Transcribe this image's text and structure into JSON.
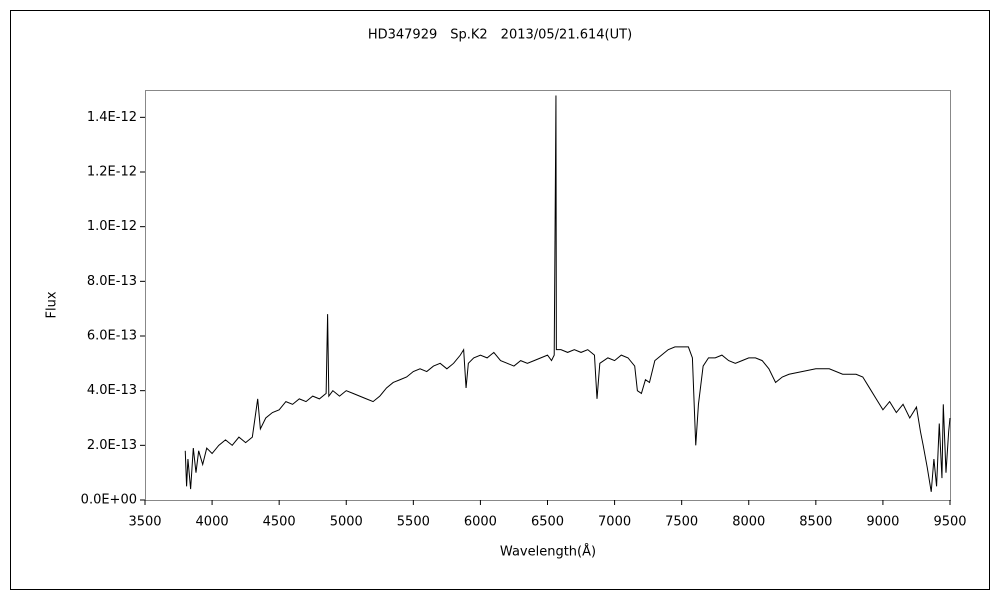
{
  "chart_data": {
    "type": "line",
    "title": "HD347929　Sp.K2　2013/05/21.614(UT)",
    "x_label": "Wavelength(Å)",
    "y_label": "Flux",
    "color": "#000000",
    "x": [
      3800,
      3810,
      3820,
      3840,
      3860,
      3880,
      3900,
      3930,
      3960,
      4000,
      4050,
      4100,
      4150,
      4200,
      4250,
      4300,
      4340,
      4360,
      4400,
      4450,
      4500,
      4550,
      4600,
      4650,
      4700,
      4750,
      4800,
      4850,
      4861,
      4870,
      4900,
      4950,
      5000,
      5050,
      5100,
      5150,
      5200,
      5250,
      5300,
      5350,
      5400,
      5450,
      5500,
      5550,
      5600,
      5650,
      5700,
      5750,
      5800,
      5850,
      5875,
      5893,
      5910,
      5950,
      6000,
      6050,
      6100,
      6150,
      6200,
      6250,
      6300,
      6350,
      6400,
      6450,
      6500,
      6530,
      6550,
      6560,
      6563,
      6566,
      6600,
      6650,
      6700,
      6750,
      6800,
      6850,
      6869,
      6890,
      6950,
      7000,
      7050,
      7100,
      7150,
      7170,
      7200,
      7230,
      7260,
      7300,
      7350,
      7400,
      7450,
      7500,
      7550,
      7580,
      7605,
      7625,
      7660,
      7700,
      7750,
      7800,
      7850,
      7900,
      7950,
      8000,
      8050,
      8100,
      8150,
      8200,
      8250,
      8300,
      8400,
      8500,
      8600,
      8700,
      8800,
      8850,
      8900,
      8950,
      9000,
      9050,
      9100,
      9150,
      9200,
      9250,
      9280,
      9300,
      9330,
      9360,
      9380,
      9400,
      9420,
      9440,
      9450,
      9470,
      9490,
      9500
    ],
    "values": [
      1.8e-13,
      5e-14,
      1.5e-13,
      4e-14,
      1.9e-13,
      1e-13,
      1.8e-13,
      1.3e-13,
      1.9e-13,
      1.7e-13,
      2e-13,
      2.2e-13,
      2e-13,
      2.3e-13,
      2.1e-13,
      2.3e-13,
      3.7e-13,
      2.6e-13,
      3e-13,
      3.2e-13,
      3.3e-13,
      3.6e-13,
      3.5e-13,
      3.7e-13,
      3.6e-13,
      3.8e-13,
      3.7e-13,
      3.9e-13,
      6.8e-13,
      3.8e-13,
      4e-13,
      3.8e-13,
      4e-13,
      3.9e-13,
      3.8e-13,
      3.7e-13,
      3.6e-13,
      3.8e-13,
      4.1e-13,
      4.3e-13,
      4.4e-13,
      4.5e-13,
      4.7e-13,
      4.8e-13,
      4.7e-13,
      4.9e-13,
      5e-13,
      4.8e-13,
      5e-13,
      5.3e-13,
      5.5e-13,
      4.1e-13,
      5e-13,
      5.2e-13,
      5.3e-13,
      5.2e-13,
      5.4e-13,
      5.1e-13,
      5e-13,
      4.9e-13,
      5.1e-13,
      5e-13,
      5.1e-13,
      5.2e-13,
      5.3e-13,
      5.1e-13,
      5.3e-13,
      1.25e-12,
      1.48e-12,
      5.5e-13,
      5.5e-13,
      5.4e-13,
      5.5e-13,
      5.4e-13,
      5.5e-13,
      5.3e-13,
      3.7e-13,
      5e-13,
      5.2e-13,
      5.1e-13,
      5.3e-13,
      5.2e-13,
      4.9e-13,
      4e-13,
      3.9e-13,
      4.4e-13,
      4.3e-13,
      5.1e-13,
      5.3e-13,
      5.5e-13,
      5.6e-13,
      5.6e-13,
      5.6e-13,
      5.2e-13,
      2e-13,
      3.5e-13,
      4.9e-13,
      5.2e-13,
      5.2e-13,
      5.3e-13,
      5.1e-13,
      5e-13,
      5.1e-13,
      5.2e-13,
      5.2e-13,
      5.1e-13,
      4.8e-13,
      4.3e-13,
      4.5e-13,
      4.6e-13,
      4.7e-13,
      4.8e-13,
      4.8e-13,
      4.6e-13,
      4.6e-13,
      4.5e-13,
      4.1e-13,
      3.7e-13,
      3.3e-13,
      3.6e-13,
      3.2e-13,
      3.5e-13,
      3e-13,
      3.4e-13,
      2.5e-13,
      2e-13,
      1.2e-13,
      3e-14,
      1.5e-13,
      5e-14,
      2.8e-13,
      8e-14,
      3.5e-13,
      1e-13,
      2.5e-13,
      3e-13
    ],
    "xlim": [
      3500,
      9500
    ],
    "xticks": [
      3500,
      4000,
      4500,
      5000,
      5500,
      6000,
      6500,
      7000,
      7500,
      8000,
      8500,
      9000,
      9500
    ],
    "ylim": [
      0,
      1.5e-12
    ],
    "yticks": [
      {
        "value": 0,
        "label": "0.0E+00"
      },
      {
        "value": 2e-13,
        "label": "2.0E-13"
      },
      {
        "value": 4e-13,
        "label": "4.0E-13"
      },
      {
        "value": 6e-13,
        "label": "6.0E-13"
      },
      {
        "value": 8e-13,
        "label": "8.0E-13"
      },
      {
        "value": 1e-12,
        "label": "1.0E-12"
      },
      {
        "value": 1.2e-12,
        "label": "1.2E-12"
      },
      {
        "value": 1.4e-12,
        "label": "1.4E-12"
      }
    ]
  }
}
